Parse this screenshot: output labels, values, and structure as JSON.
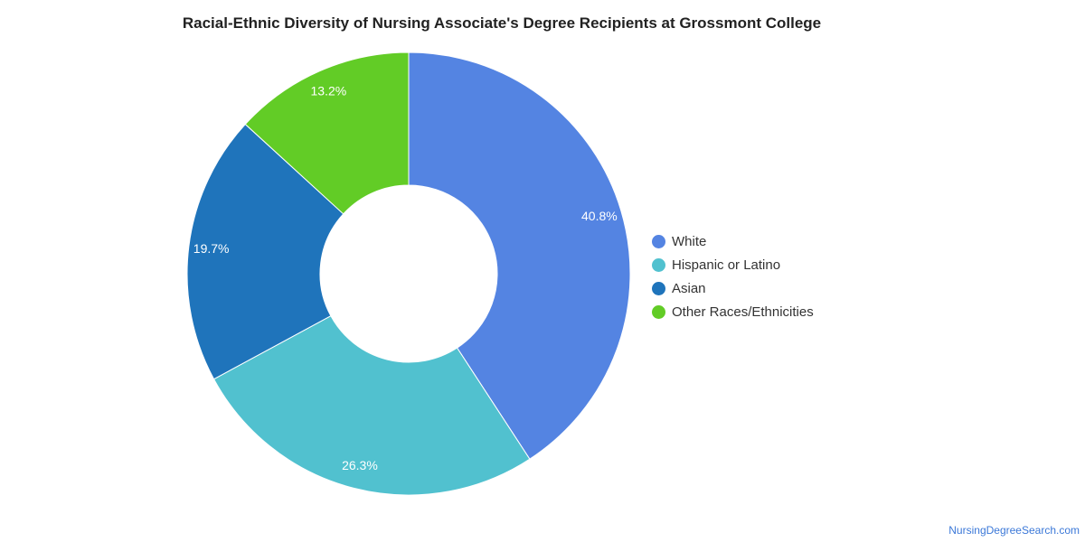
{
  "chart_data": {
    "type": "pie",
    "variant": "donut",
    "title": "Racial-Ethnic Diversity of Nursing Associate's Degree Recipients at Grossmont College",
    "slices": [
      {
        "label": "White",
        "value": 40.8,
        "display": "40.8%",
        "color": "#5484e2"
      },
      {
        "label": "Hispanic or Latino",
        "value": 26.3,
        "display": "26.3%",
        "color": "#51c1cf"
      },
      {
        "label": "Asian",
        "value": 19.7,
        "display": "19.7%",
        "color": "#1f74bb"
      },
      {
        "label": "Other Races/Ethnicities",
        "value": 13.2,
        "display": "13.2%",
        "color": "#62cc26"
      }
    ],
    "legend_position": "right"
  },
  "footer": {
    "source": "NursingDegreeSearch.com"
  }
}
